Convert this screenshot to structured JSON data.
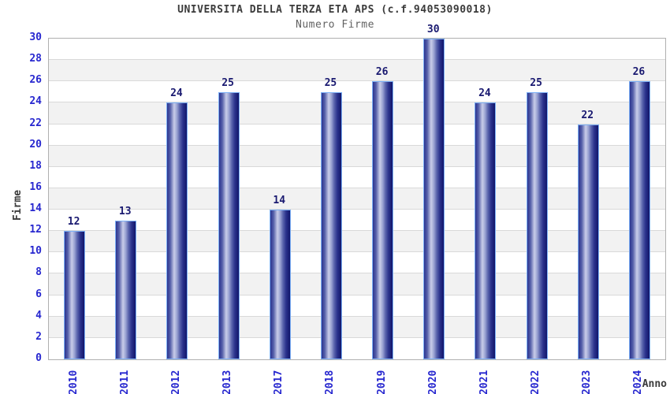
{
  "chart_data": {
    "type": "bar",
    "title": "UNIVERSITA DELLA TERZA ETA APS (c.f.94053090018)",
    "subtitle": "Numero Firme",
    "xlabel": "Anno",
    "ylabel": "Firme",
    "categories": [
      "2010",
      "2011",
      "2012",
      "2013",
      "2017",
      "2018",
      "2019",
      "2020",
      "2021",
      "2022",
      "2023",
      "2024"
    ],
    "values": [
      12,
      13,
      24,
      25,
      14,
      25,
      26,
      30,
      24,
      25,
      22,
      26
    ],
    "ylim": [
      0,
      30
    ],
    "ytick_step": 2,
    "grid": true,
    "bar_value_labels": true,
    "legend": "none",
    "colors": {
      "tick_label_blue": "#2727cf",
      "bar_value_navy": "#191970",
      "title_gray": "#3b3b3b",
      "subtitle_gray": "#626262",
      "bar_dark_navy": "#12166a",
      "bar_mid_navy": "#2c3590",
      "bar_highlight": "#c9cde9",
      "bar_border_lightblue": "#7db1f7",
      "band_gray": "#f2f2f2",
      "band_white": "#ffffff",
      "gridline_gray": "#d9d9d9",
      "plot_border_gray": "#b0b0b0",
      "background": "#ffffff"
    }
  }
}
